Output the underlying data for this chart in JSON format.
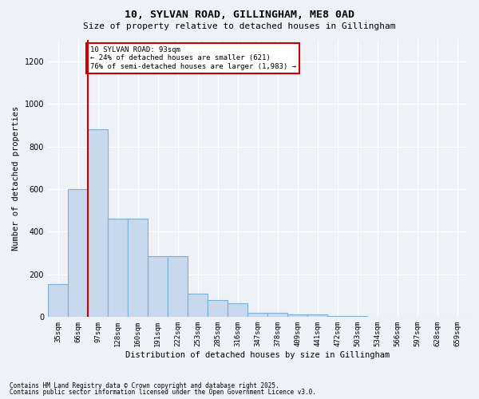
{
  "title_line1": "10, SYLVAN ROAD, GILLINGHAM, ME8 0AD",
  "title_line2": "Size of property relative to detached houses in Gillingham",
  "xlabel": "Distribution of detached houses by size in Gillingham",
  "ylabel": "Number of detached properties",
  "bar_color": "#c8d9ee",
  "bar_edge_color": "#7aafd4",
  "background_color": "#eef2f7",
  "grid_color": "#ffffff",
  "categories": [
    "35sqm",
    "66sqm",
    "97sqm",
    "128sqm",
    "160sqm",
    "191sqm",
    "222sqm",
    "253sqm",
    "285sqm",
    "316sqm",
    "347sqm",
    "378sqm",
    "409sqm",
    "441sqm",
    "472sqm",
    "503sqm",
    "534sqm",
    "566sqm",
    "597sqm",
    "628sqm",
    "659sqm"
  ],
  "values": [
    155,
    600,
    880,
    460,
    460,
    285,
    285,
    110,
    80,
    65,
    20,
    20,
    12,
    12,
    5,
    5,
    2,
    2,
    1,
    1,
    0
  ],
  "red_line_color": "#cc0000",
  "annotation_text": "10 SYLVAN ROAD: 93sqm\n← 24% of detached houses are smaller (621)\n76% of semi-detached houses are larger (1,983) →",
  "annotation_box_color": "#ffffff",
  "annotation_box_edge": "#cc0000",
  "ylim": [
    0,
    1300
  ],
  "yticks": [
    0,
    200,
    400,
    600,
    800,
    1000,
    1200
  ],
  "footnote1": "Contains HM Land Registry data © Crown copyright and database right 2025.",
  "footnote2": "Contains public sector information licensed under the Open Government Licence v3.0."
}
